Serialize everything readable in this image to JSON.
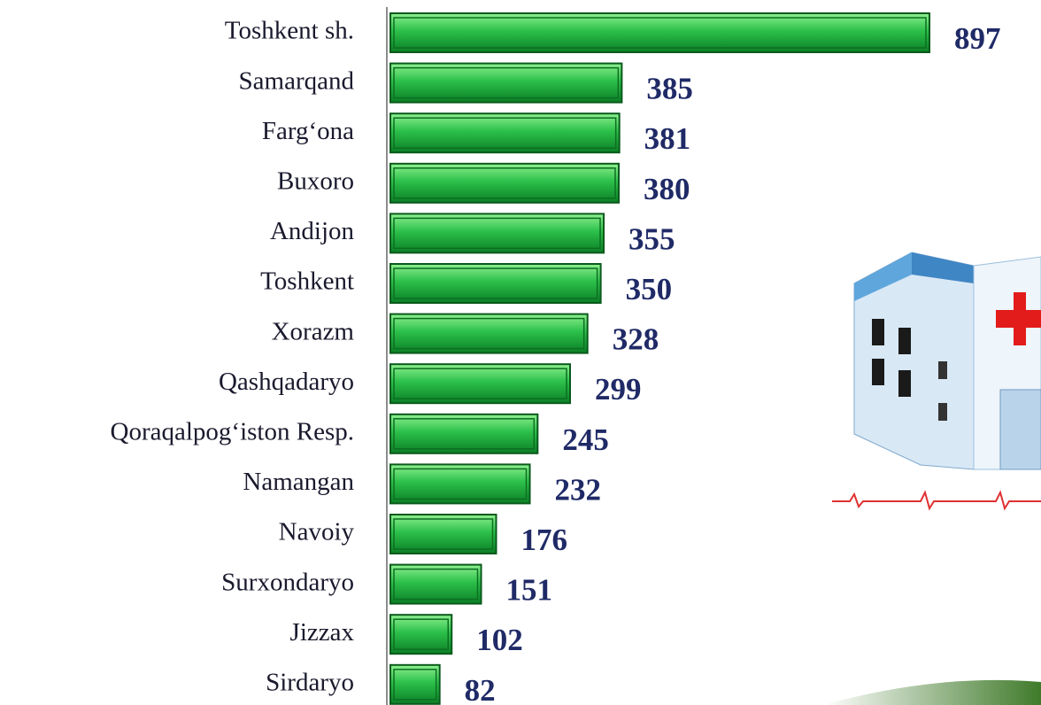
{
  "chart_data": {
    "type": "bar",
    "orientation": "horizontal",
    "categories": [
      "Toshkent sh.",
      "Samarqand",
      "Farg‘ona",
      "Buxoro",
      "Andijon",
      "Toshkent",
      "Xorazm",
      "Qashqadaryo",
      "Qoraqalpog‘iston Resp.",
      "Namangan",
      "Navoiy",
      "Surxondaryo",
      "Jizzax",
      "Sirdaryo"
    ],
    "values": [
      897,
      385,
      381,
      380,
      355,
      350,
      328,
      299,
      245,
      232,
      176,
      151,
      102,
      82
    ],
    "color": "#1aa53a"
  }
}
